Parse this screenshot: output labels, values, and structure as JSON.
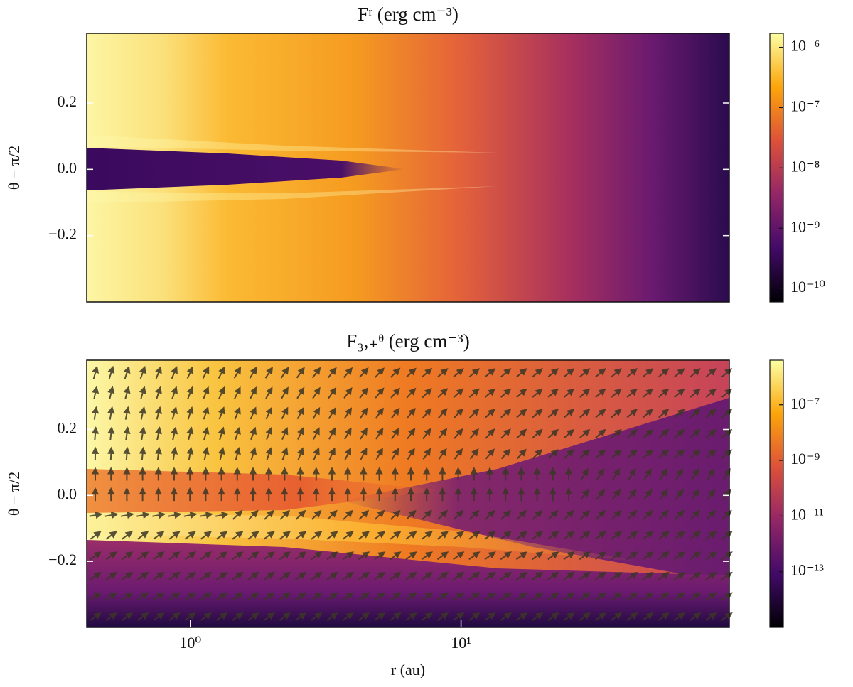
{
  "chart_data": [
    {
      "type": "heatmap",
      "title": "Fʳ (erg cm⁻³)",
      "ylabel": "θ − π/2",
      "xscale": "log",
      "xlim": [
        0.414,
        98
      ],
      "ylim": [
        -0.4,
        0.41
      ],
      "yticks": [
        {
          "value": -0.2,
          "label": "−0.2"
        },
        {
          "value": 0,
          "label": "0.0"
        },
        0.2
      ],
      "colorbar": {
        "scale": "log",
        "lim": [
          6e-11,
          1.7e-06
        ],
        "colormap": [
          "#000004",
          "#420a68",
          "#932667",
          "#dd513a",
          "#fca50a",
          "#fcffa4"
        ],
        "ticks": [
          {
            "value": 1e-10,
            "label": "10⁻¹⁰"
          },
          {
            "value": 1e-09,
            "label": "10⁻⁹"
          },
          {
            "value": 1e-08,
            "label": "10⁻⁸"
          },
          {
            "value": 1e-07,
            "label": "10⁻⁷"
          },
          {
            "value": 1e-06,
            "label": "10⁻⁶"
          }
        ]
      }
    },
    {
      "type": "heatmap",
      "title": "F₃,₊ᶿ (erg cm⁻³)",
      "ylabel": "θ − π/2",
      "xlabel": "r (au)",
      "xscale": "log",
      "xlim": [
        0.414,
        98
      ],
      "ylim": [
        -0.4,
        0.41
      ],
      "quiver": true,
      "xticks": [
        {
          "value": 1,
          "label": "10⁰"
        },
        {
          "value": 10,
          "label": "10¹"
        }
      ],
      "yticks": [
        {
          "value": -0.2,
          "label": "−0.2"
        },
        {
          "value": 0,
          "label": "0.0"
        },
        0.2
      ],
      "colorbar": {
        "scale": "log",
        "lim": [
          1e-15,
          4e-06
        ],
        "colormap": [
          "#000004",
          "#420a68",
          "#932667",
          "#dd513a",
          "#fca50a",
          "#fcffa4"
        ],
        "ticks": [
          {
            "value": 1e-13,
            "label": "10⁻¹³"
          },
          {
            "value": 1e-11,
            "label": "10⁻¹¹"
          },
          {
            "value": 1e-09,
            "label": "10⁻⁹"
          },
          {
            "value": 1e-07,
            "label": "10⁻⁷"
          }
        ]
      }
    }
  ]
}
